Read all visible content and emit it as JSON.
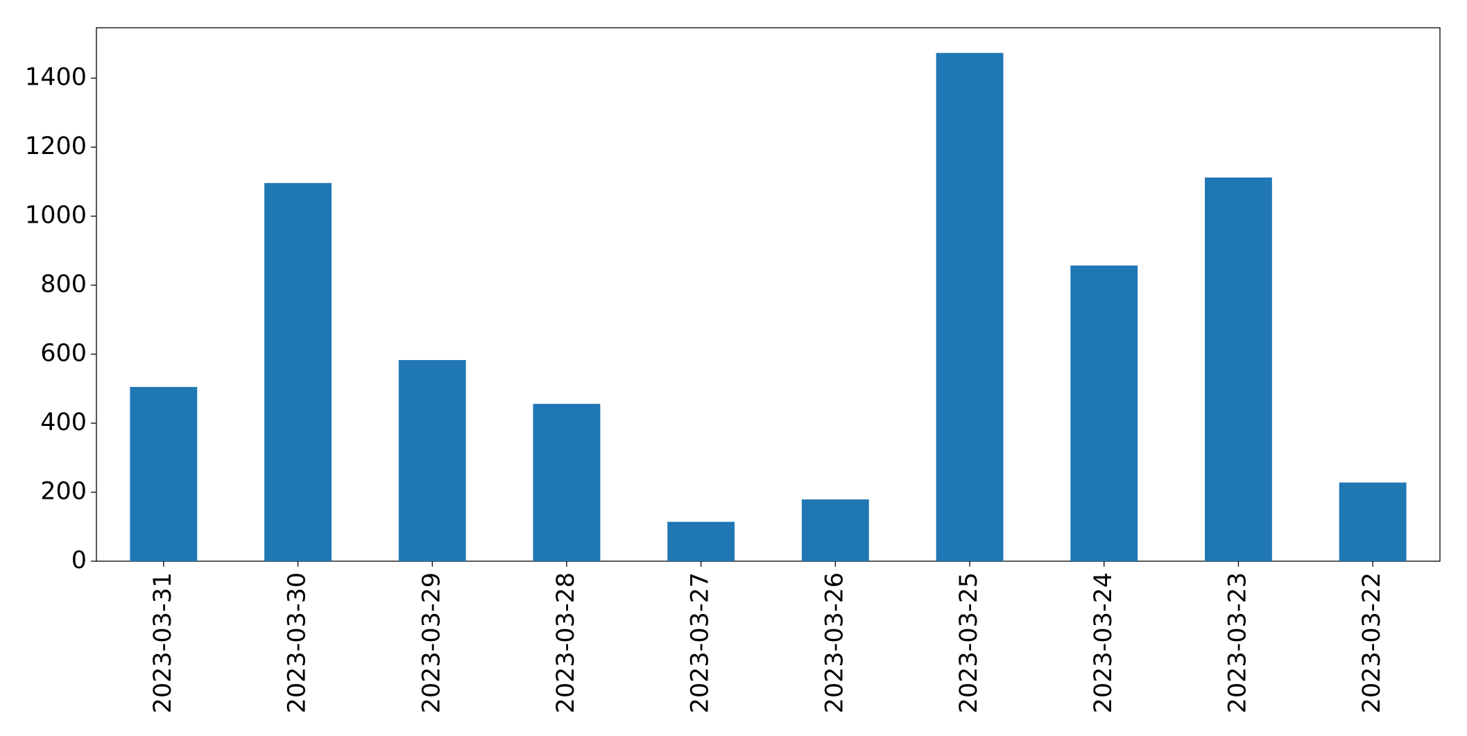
{
  "chart_data": {
    "type": "bar",
    "categories": [
      "2023-03-31",
      "2023-03-30",
      "2023-03-29",
      "2023-03-28",
      "2023-03-27",
      "2023-03-26",
      "2023-03-25",
      "2023-03-24",
      "2023-03-23",
      "2023-03-22"
    ],
    "values": [
      505,
      1096,
      583,
      456,
      114,
      179,
      1473,
      857,
      1112,
      228
    ],
    "color": "#1f77b4",
    "ylim": [
      0,
      1546
    ],
    "yticks": [
      0,
      200,
      400,
      600,
      800,
      1000,
      1200,
      1400
    ],
    "grid": false
  }
}
